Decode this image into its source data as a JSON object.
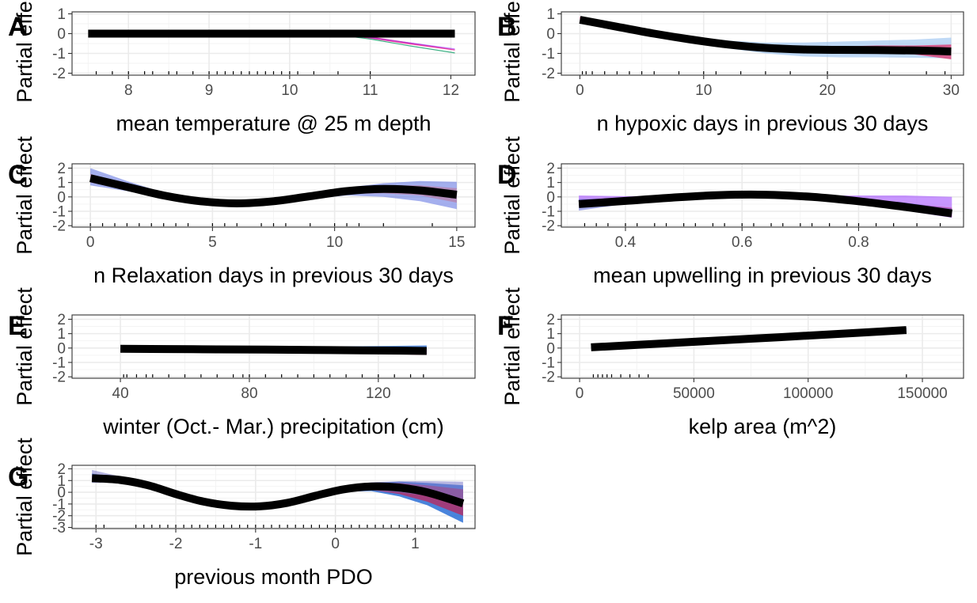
{
  "chart_data": [
    {
      "type": "line",
      "tag": "A",
      "xlabel": "mean temperature @ 25 m depth",
      "ylabel": "Partial effect",
      "xlim": [
        7.3,
        12.3
      ],
      "ylim": [
        -2.1,
        1.1
      ],
      "xticks": [
        8,
        9,
        10,
        11,
        12
      ],
      "yticks": [
        -2,
        -1,
        0,
        1
      ],
      "x": [
        7.5,
        8,
        8.5,
        9,
        9.5,
        10,
        10.5,
        11,
        11.5,
        12.05
      ],
      "fit": [
        0,
        0,
        0,
        0,
        0,
        0,
        0,
        0,
        0,
        0
      ],
      "bands": [
        {
          "color": "#e6208f",
          "opacity": 0.85,
          "lower": [
            0,
            0,
            0,
            0,
            0,
            0,
            -0.02,
            -0.25,
            -0.55,
            -0.85
          ],
          "upper": [
            0,
            0,
            0,
            0,
            0,
            0,
            0,
            -0.15,
            -0.45,
            -0.8
          ]
        },
        {
          "color": "#1aa36f",
          "opacity": 0.85,
          "lower": [
            0,
            0,
            0,
            0,
            0,
            0,
            -0.03,
            -0.3,
            -0.65,
            -1.0
          ],
          "upper": [
            0,
            0,
            0,
            0,
            0,
            0,
            -0.01,
            -0.25,
            -0.6,
            -0.95
          ]
        },
        {
          "color": "#9b30ff",
          "opacity": 0.6,
          "lower": [
            0,
            0,
            0,
            0,
            0,
            0,
            -0.02,
            -0.22,
            -0.5,
            -0.8
          ],
          "upper": [
            0,
            0,
            0,
            0,
            0,
            0,
            0,
            -0.18,
            -0.45,
            -0.75
          ]
        }
      ],
      "rug": [
        7.6,
        7.8,
        8.0,
        8.2,
        8.3,
        8.5,
        8.6,
        8.8,
        9.0,
        9.1,
        9.2,
        9.3,
        9.4,
        9.5,
        9.6,
        9.7,
        9.8,
        9.9,
        10.0,
        10.1,
        10.3,
        10.6,
        11.0
      ]
    },
    {
      "type": "line",
      "tag": "B",
      "xlabel": "n hypoxic days in previous 30 days",
      "ylabel": "Partial effect",
      "xlim": [
        -1.5,
        31
      ],
      "ylim": [
        -2.1,
        1.1
      ],
      "xticks": [
        0,
        10,
        20,
        30
      ],
      "yticks": [
        -2,
        -1,
        0,
        1
      ],
      "x": [
        0,
        3,
        6,
        9,
        12,
        15,
        18,
        21,
        24,
        27,
        30
      ],
      "fit": [
        0.7,
        0.35,
        0.0,
        -0.3,
        -0.55,
        -0.72,
        -0.8,
        -0.82,
        -0.83,
        -0.85,
        -0.9
      ],
      "bands": [
        {
          "color": "#7fb3ee",
          "opacity": 0.5,
          "lower": [
            0.5,
            0.2,
            -0.12,
            -0.45,
            -0.75,
            -1.0,
            -1.15,
            -1.2,
            -1.2,
            -1.22,
            -1.25
          ],
          "upper": [
            0.85,
            0.5,
            0.12,
            -0.15,
            -0.35,
            -0.45,
            -0.45,
            -0.4,
            -0.35,
            -0.3,
            -0.2
          ]
        },
        {
          "color": "#d8457a",
          "opacity": 0.85,
          "lower": [
            0.55,
            0.25,
            -0.08,
            -0.4,
            -0.68,
            -0.86,
            -0.95,
            -0.98,
            -1.0,
            -1.05,
            -1.3
          ],
          "upper": [
            0.85,
            0.48,
            0.12,
            -0.18,
            -0.42,
            -0.6,
            -0.65,
            -0.65,
            -0.6,
            -0.6,
            -0.55
          ]
        }
      ],
      "rug": [
        0.2,
        0.5,
        1,
        2,
        3,
        4,
        5,
        6,
        8,
        10,
        11,
        13,
        15,
        17,
        20,
        25,
        28,
        29.5
      ]
    },
    {
      "type": "line",
      "tag": "C",
      "xlabel": "n Relaxation days in previous 30 days",
      "ylabel": "Partial effect",
      "xlim": [
        -0.75,
        15.75
      ],
      "ylim": [
        -2.1,
        2.3
      ],
      "xticks": [
        0,
        5,
        10,
        15
      ],
      "yticks": [
        -2,
        -1,
        0,
        1,
        2
      ],
      "x": [
        0,
        1.5,
        3,
        4.5,
        6,
        7.5,
        9,
        10.5,
        12,
        13.5,
        15
      ],
      "fit": [
        1.3,
        0.7,
        0.1,
        -0.3,
        -0.45,
        -0.3,
        0.05,
        0.4,
        0.55,
        0.45,
        0.15
      ],
      "bands": [
        {
          "color": "#5a6ee0",
          "opacity": 0.55,
          "lower": [
            0.8,
            0.4,
            -0.1,
            -0.45,
            -0.58,
            -0.45,
            -0.15,
            0.1,
            0.0,
            -0.3,
            -0.85
          ],
          "upper": [
            2.0,
            1.1,
            0.3,
            -0.15,
            -0.32,
            -0.15,
            0.25,
            0.65,
            0.95,
            1.1,
            1.05
          ]
        },
        {
          "color": "#c06a8a",
          "opacity": 0.5,
          "lower": [
            1.0,
            0.5,
            0.0,
            -0.38,
            -0.52,
            -0.38,
            -0.05,
            0.2,
            0.25,
            0.1,
            -0.4
          ],
          "upper": [
            1.6,
            0.9,
            0.2,
            -0.22,
            -0.38,
            -0.22,
            0.15,
            0.55,
            0.8,
            0.8,
            0.6
          ]
        }
      ],
      "rug": [
        0,
        0.5,
        1,
        1.5,
        2,
        2.5,
        3,
        3.5,
        4,
        5,
        5.5,
        6,
        7,
        7.5,
        8,
        9,
        10,
        10.5,
        11,
        12,
        14
      ]
    },
    {
      "type": "line",
      "tag": "D",
      "xlabel": "mean upwelling in previous 30 days",
      "ylabel": "Partial effect",
      "xlim": [
        0.29,
        0.98
      ],
      "ylim": [
        -2.1,
        2.3
      ],
      "xticks": [
        0.4,
        0.6,
        0.8
      ],
      "yticks": [
        -2,
        -1,
        0,
        1,
        2
      ],
      "x": [
        0.32,
        0.4,
        0.48,
        0.56,
        0.64,
        0.72,
        0.8,
        0.88,
        0.96
      ],
      "fit": [
        -0.5,
        -0.28,
        -0.05,
        0.12,
        0.15,
        0.0,
        -0.3,
        -0.7,
        -1.15
      ],
      "bands": [
        {
          "color": "#9b3fff",
          "opacity": 0.55,
          "lower": [
            -0.55,
            -0.35,
            -0.1,
            0.06,
            0.08,
            -0.08,
            -0.45,
            -0.95,
            -1.45
          ],
          "upper": [
            0.1,
            0.05,
            0.05,
            0.12,
            0.18,
            0.08,
            0.1,
            0.1,
            0.0
          ]
        },
        {
          "color": "#e03a7a",
          "opacity": 0.6,
          "lower": [
            -0.65,
            -0.4,
            -0.15,
            0.05,
            0.08,
            -0.1,
            -0.5,
            -0.95,
            -1.4
          ],
          "upper": [
            -0.3,
            -0.18,
            0.02,
            0.16,
            0.2,
            0.05,
            -0.15,
            -0.45,
            -0.75
          ]
        },
        {
          "color": "#4f5bd5",
          "opacity": 0.5,
          "lower": [
            -0.95,
            -0.5,
            -0.2,
            0.02,
            0.04,
            -0.12,
            -0.48,
            -0.9,
            -1.35
          ],
          "upper": [
            -0.15,
            -0.1,
            0.05,
            0.18,
            0.22,
            0.1,
            -0.1,
            -0.4,
            -0.8
          ]
        }
      ],
      "rug": [
        0.33,
        0.35,
        0.37,
        0.4,
        0.42,
        0.45,
        0.47,
        0.5,
        0.52,
        0.55,
        0.57,
        0.6,
        0.62,
        0.65,
        0.67,
        0.7,
        0.72,
        0.75,
        0.78,
        0.8,
        0.83,
        0.86,
        0.9,
        0.94
      ]
    },
    {
      "type": "line",
      "tag": "E",
      "xlabel": "winter (Oct.- Mar.) precipitation (cm)",
      "ylabel": "Partial effect",
      "xlim": [
        25,
        150
      ],
      "ylim": [
        -2.1,
        2.3
      ],
      "xticks": [
        40,
        80,
        120
      ],
      "yticks": [
        -2,
        -1,
        0,
        1,
        2
      ],
      "x": [
        40,
        55,
        70,
        85,
        100,
        115,
        135
      ],
      "fit": [
        -0.05,
        -0.07,
        -0.09,
        -0.11,
        -0.13,
        -0.16,
        -0.2
      ],
      "bands": [
        {
          "color": "#3a78d8",
          "opacity": 0.8,
          "lower": [
            -0.08,
            -0.1,
            -0.12,
            -0.14,
            -0.17,
            -0.2,
            -0.25
          ],
          "upper": [
            0,
            0.02,
            0.04,
            0.06,
            0.1,
            0.13,
            0.18
          ]
        },
        {
          "color": "#e03a8a",
          "opacity": 0.8,
          "lower": [
            -0.1,
            -0.14,
            -0.18,
            -0.24,
            -0.3,
            -0.38,
            -0.48
          ],
          "upper": [
            0,
            -0.02,
            -0.04,
            -0.06,
            -0.08,
            -0.1,
            -0.12
          ]
        },
        {
          "color": "#9b3fff",
          "opacity": 0.6,
          "lower": [
            -0.08,
            -0.12,
            -0.16,
            -0.22,
            -0.28,
            -0.34,
            -0.42
          ],
          "upper": [
            0,
            -0.01,
            -0.02,
            -0.03,
            -0.05,
            -0.07,
            -0.1
          ]
        }
      ],
      "rug": [
        41,
        42,
        45,
        48,
        50,
        55,
        60,
        65,
        70,
        75,
        78,
        80,
        85,
        90,
        95,
        100,
        105,
        110,
        115,
        120,
        125,
        130,
        134
      ]
    },
    {
      "type": "line",
      "tag": "F",
      "xlabel": "kelp area (m^2)",
      "ylabel": "Partial effect",
      "xlim": [
        -8000,
        168000
      ],
      "ylim": [
        -2.1,
        2.3
      ],
      "xticks": [
        0,
        50000,
        100000,
        150000
      ],
      "xticklabels": [
        "0",
        "50000",
        "100000",
        "150000"
      ],
      "yticks": [
        -2,
        -1,
        0,
        1,
        2
      ],
      "x": [
        5000,
        40000,
        75000,
        110000,
        143000
      ],
      "fit": [
        0.05,
        0.35,
        0.65,
        0.95,
        1.25
      ],
      "bands": [
        {
          "color": "#2a2f8c",
          "opacity": 0.9,
          "lower": [
            -0.02,
            0.28,
            0.58,
            0.88,
            1.1
          ],
          "upper": [
            0.12,
            0.42,
            0.72,
            1.02,
            1.42
          ]
        }
      ],
      "rug": [
        6000,
        8000,
        10000,
        12000,
        14000,
        18000,
        22000,
        26000,
        30000,
        143000
      ]
    },
    {
      "type": "line",
      "tag": "G",
      "xlabel": "previous month PDO",
      "ylabel": "Partial effect",
      "xlim": [
        -3.3,
        1.75
      ],
      "ylim": [
        -3.1,
        2.3
      ],
      "xticks": [
        -3,
        -2,
        -1,
        0,
        1
      ],
      "yticks": [
        -3,
        -2,
        -1,
        0,
        1,
        2
      ],
      "x": [
        -3.05,
        -2.7,
        -2.35,
        -2.0,
        -1.65,
        -1.3,
        -0.95,
        -0.6,
        -0.25,
        0.1,
        0.45,
        0.8,
        1.15,
        1.6
      ],
      "fit": [
        1.2,
        1.05,
        0.6,
        -0.15,
        -0.8,
        -1.15,
        -1.2,
        -0.9,
        -0.3,
        0.25,
        0.5,
        0.4,
        0.0,
        -0.95
      ],
      "bands": [
        {
          "color": "#2a6fd6",
          "opacity": 0.85,
          "lower": [
            0.9,
            0.9,
            0.45,
            -0.3,
            -0.95,
            -1.3,
            -1.35,
            -1.05,
            -0.45,
            0.05,
            0.1,
            -0.35,
            -1.1,
            -2.6
          ],
          "upper": [
            1.6,
            1.25,
            0.75,
            0.0,
            -0.65,
            -1.0,
            -1.05,
            -0.75,
            -0.15,
            0.45,
            0.8,
            0.9,
            0.8,
            0.6
          ]
        },
        {
          "color": "#b0306a",
          "opacity": 0.85,
          "lower": [
            1.0,
            0.95,
            0.5,
            -0.25,
            -0.9,
            -1.25,
            -1.3,
            -1.0,
            -0.4,
            0.1,
            0.2,
            -0.15,
            -0.8,
            -2.0
          ],
          "upper": [
            1.45,
            1.15,
            0.7,
            -0.05,
            -0.7,
            -1.05,
            -1.1,
            -0.8,
            -0.2,
            0.4,
            0.75,
            0.8,
            0.6,
            0.25
          ]
        },
        {
          "color": "#7a78c8",
          "opacity": 0.55,
          "lower": [
            0.8,
            0.85,
            0.4,
            -0.35,
            -1.0,
            -1.35,
            -1.4,
            -1.1,
            -0.5,
            0.0,
            0.15,
            0.0,
            -0.3,
            -0.8
          ],
          "upper": [
            1.9,
            1.35,
            0.8,
            0.05,
            -0.6,
            -0.95,
            -1.0,
            -0.7,
            -0.1,
            0.5,
            0.85,
            0.95,
            0.95,
            0.9
          ]
        }
      ],
      "rug": [
        -3.0,
        -2.9,
        -2.5,
        -2.4,
        -2.3,
        -2.2,
        -2.1,
        -2.0,
        -1.9,
        -1.8,
        -1.7,
        -1.6,
        -1.5,
        -1.4,
        -1.3,
        -1.2,
        -1.1,
        -1.0,
        -0.9,
        -0.8,
        -0.7,
        -0.6,
        -0.5,
        -0.4,
        -0.3,
        -0.2,
        -0.1,
        0.0,
        0.1,
        0.2,
        0.3,
        0.4,
        0.5,
        0.6,
        0.7,
        0.8,
        0.9,
        1.0,
        1.1,
        1.2,
        1.3,
        1.4,
        1.5
      ]
    }
  ]
}
